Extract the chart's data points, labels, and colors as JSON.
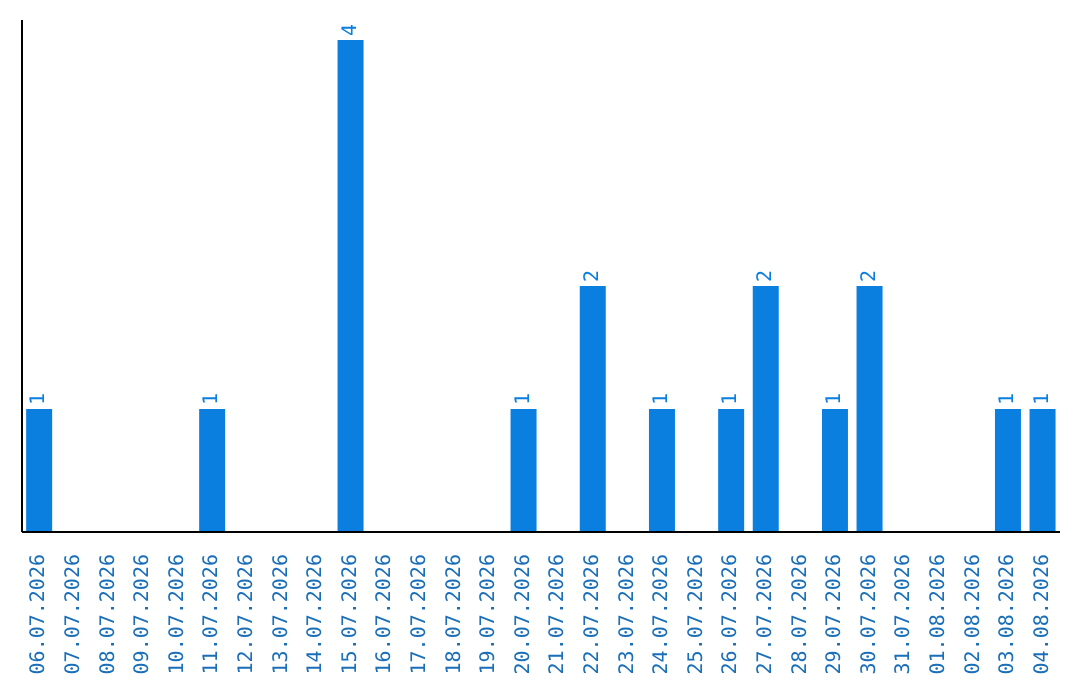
{
  "chart_data": {
    "type": "bar",
    "categories": [
      "06.07.2026",
      "07.07.2026",
      "08.07.2026",
      "09.07.2026",
      "10.07.2026",
      "11.07.2026",
      "12.07.2026",
      "13.07.2026",
      "14.07.2026",
      "15.07.2026",
      "16.07.2026",
      "17.07.2026",
      "18.07.2026",
      "19.07.2026",
      "20.07.2026",
      "21.07.2026",
      "22.07.2026",
      "23.07.2026",
      "24.07.2026",
      "25.07.2026",
      "26.07.2026",
      "27.07.2026",
      "28.07.2026",
      "29.07.2026",
      "30.07.2026",
      "31.07.2026",
      "01.08.2026",
      "02.08.2026",
      "03.08.2026",
      "04.08.2026"
    ],
    "values": [
      1,
      0,
      0,
      0,
      0,
      1,
      0,
      0,
      0,
      4,
      0,
      0,
      0,
      0,
      1,
      0,
      2,
      0,
      1,
      0,
      1,
      2,
      0,
      1,
      2,
      0,
      0,
      0,
      1,
      1
    ],
    "value_labels": [
      "1",
      null,
      null,
      null,
      null,
      "1",
      null,
      null,
      null,
      "4",
      null,
      null,
      null,
      null,
      "1",
      null,
      "2",
      null,
      "1",
      null,
      "1",
      "2",
      null,
      "1",
      "2",
      null,
      null,
      null,
      "1",
      "1"
    ],
    "color": "#0a7fe0",
    "grid": false,
    "legend": false
  }
}
